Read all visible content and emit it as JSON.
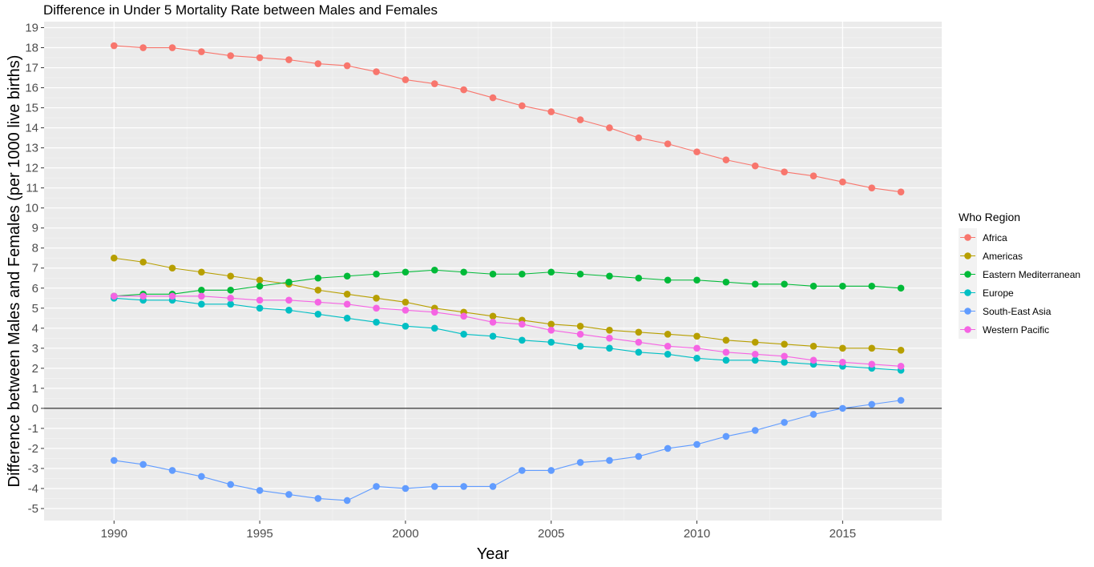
{
  "chart_data": {
    "type": "line",
    "title": "Difference in Under 5 Mortality Rate between Males and Females",
    "xlabel": "Year",
    "ylabel": "Difference between Males and Females (per 1000 live births)",
    "xlim": [
      1987.6,
      2018.4
    ],
    "ylim": [
      -5.6,
      19.3
    ],
    "x_ticks": [
      1990,
      1995,
      2000,
      2005,
      2010,
      2015
    ],
    "y_ticks": [
      -5,
      -4,
      -3,
      -2,
      -1,
      0,
      1,
      2,
      3,
      4,
      5,
      6,
      7,
      8,
      9,
      10,
      11,
      12,
      13,
      14,
      15,
      16,
      17,
      18,
      19
    ],
    "hline": 0,
    "grid": true,
    "legend_title": "Who Region",
    "legend_position": "right",
    "x": [
      1990,
      1991,
      1992,
      1993,
      1994,
      1995,
      1996,
      1997,
      1998,
      1999,
      2000,
      2001,
      2002,
      2003,
      2004,
      2005,
      2006,
      2007,
      2008,
      2009,
      2010,
      2011,
      2012,
      2013,
      2014,
      2015,
      2016,
      2017
    ],
    "series": [
      {
        "name": "Africa",
        "color": "#F8766D",
        "values": [
          18.1,
          18.0,
          18.0,
          17.8,
          17.6,
          17.5,
          17.4,
          17.2,
          17.1,
          16.8,
          16.4,
          16.2,
          15.9,
          15.5,
          15.1,
          14.8,
          14.4,
          14.0,
          13.5,
          13.2,
          12.8,
          12.4,
          12.1,
          11.8,
          11.6,
          11.3,
          11.0,
          10.8
        ]
      },
      {
        "name": "Americas",
        "color": "#B79F00",
        "values": [
          7.5,
          7.3,
          7.0,
          6.8,
          6.6,
          6.4,
          6.2,
          5.9,
          5.7,
          5.5,
          5.3,
          5.0,
          4.8,
          4.6,
          4.4,
          4.2,
          4.1,
          3.9,
          3.8,
          3.7,
          3.6,
          3.4,
          3.3,
          3.2,
          3.1,
          3.0,
          3.0,
          2.9
        ]
      },
      {
        "name": "Eastern Mediterranean",
        "color": "#00BA38",
        "values": [
          5.6,
          5.7,
          5.7,
          5.9,
          5.9,
          6.1,
          6.3,
          6.5,
          6.6,
          6.7,
          6.8,
          6.9,
          6.8,
          6.7,
          6.7,
          6.8,
          6.7,
          6.6,
          6.5,
          6.4,
          6.4,
          6.3,
          6.2,
          6.2,
          6.1,
          6.1,
          6.1,
          6.0
        ]
      },
      {
        "name": "Europe",
        "color": "#00BFC4",
        "values": [
          5.5,
          5.4,
          5.4,
          5.2,
          5.2,
          5.0,
          4.9,
          4.7,
          4.5,
          4.3,
          4.1,
          4.0,
          3.7,
          3.6,
          3.4,
          3.3,
          3.1,
          3.0,
          2.8,
          2.7,
          2.5,
          2.4,
          2.4,
          2.3,
          2.2,
          2.1,
          2.0,
          1.9
        ]
      },
      {
        "name": "South-East Asia",
        "color": "#619CFF",
        "values": [
          -2.6,
          -2.8,
          -3.1,
          -3.4,
          -3.8,
          -4.1,
          -4.3,
          -4.5,
          -4.6,
          -3.9,
          -4.0,
          -3.9,
          -3.9,
          -3.9,
          -3.1,
          -3.1,
          -2.7,
          -2.6,
          -2.4,
          -2.0,
          -1.8,
          -1.4,
          -1.1,
          -0.7,
          -0.3,
          0.0,
          0.2,
          0.4
        ]
      },
      {
        "name": "Western Pacific",
        "color": "#F564E3",
        "values": [
          5.6,
          5.6,
          5.6,
          5.6,
          5.5,
          5.4,
          5.4,
          5.3,
          5.2,
          5.0,
          4.9,
          4.8,
          4.6,
          4.3,
          4.2,
          3.9,
          3.7,
          3.5,
          3.3,
          3.1,
          3.0,
          2.8,
          2.7,
          2.6,
          2.4,
          2.3,
          2.2,
          2.1
        ]
      }
    ]
  }
}
